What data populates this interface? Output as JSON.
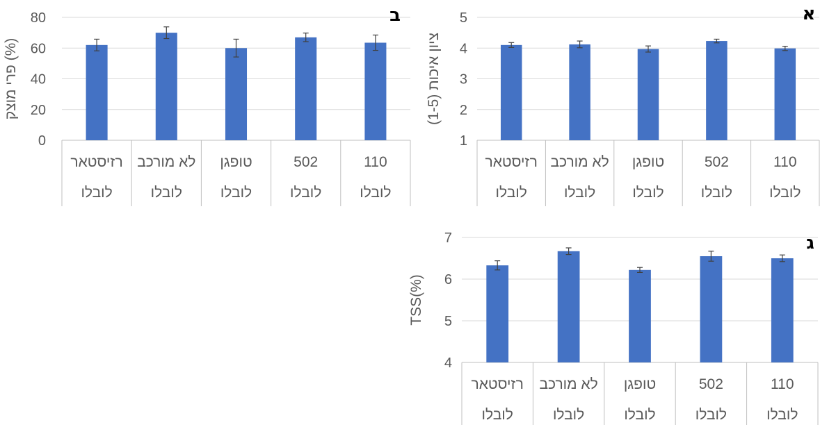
{
  "chart_data": [
    {
      "type": "bar",
      "panel_label": "א",
      "ylabel": "ציון איכות (1-5)",
      "ylim": [
        1,
        5
      ],
      "y_ticks": [
        1,
        2,
        3,
        4,
        5
      ],
      "grid": true,
      "categories": [
        [
          "רזיסטאר",
          "לובלו"
        ],
        [
          "לא מורכב",
          "לובלו"
        ],
        [
          "טופגן",
          "לובלו"
        ],
        [
          "502",
          "לובלו"
        ],
        [
          "110",
          "לובלו"
        ]
      ],
      "values": [
        4.1,
        4.12,
        3.97,
        4.23,
        3.99
      ],
      "errors": [
        0.08,
        0.11,
        0.1,
        0.06,
        0.07
      ]
    },
    {
      "type": "bar",
      "panel_label": "ב",
      "ylabel": "פרי מוצק (%)",
      "ylim": [
        0,
        80
      ],
      "y_ticks": [
        0,
        20,
        40,
        60,
        80
      ],
      "grid": true,
      "categories": [
        [
          "רזיסטאר",
          "לובלו"
        ],
        [
          "לא מורכב",
          "לובלו"
        ],
        [
          "טופגן",
          "לובלו"
        ],
        [
          "502",
          "לובלו"
        ],
        [
          "110",
          "לובלו"
        ]
      ],
      "values": [
        62,
        70,
        60,
        67,
        63.5
      ],
      "errors": [
        3.8,
        3.8,
        5.8,
        2.8,
        5
      ]
    },
    {
      "type": "bar",
      "panel_label": "ג",
      "ylabel": "TSS(%)",
      "ylim": [
        4,
        7
      ],
      "y_ticks": [
        4,
        5,
        6,
        7
      ],
      "grid": true,
      "categories": [
        [
          "רזיסטאר",
          "לובלו"
        ],
        [
          "לא מורכב",
          "לובלו"
        ],
        [
          "טופגן",
          "לובלו"
        ],
        [
          "502",
          "לובלו"
        ],
        [
          "110",
          "לובלו"
        ]
      ],
      "values": [
        6.33,
        6.67,
        6.22,
        6.55,
        6.5
      ],
      "errors": [
        0.11,
        0.08,
        0.06,
        0.12,
        0.08
      ]
    }
  ],
  "colors": {
    "bar": "#4472C4",
    "grid": "#D9D9D9",
    "axis": "#BFBFBF",
    "text": "#595959",
    "error": "#404040"
  }
}
